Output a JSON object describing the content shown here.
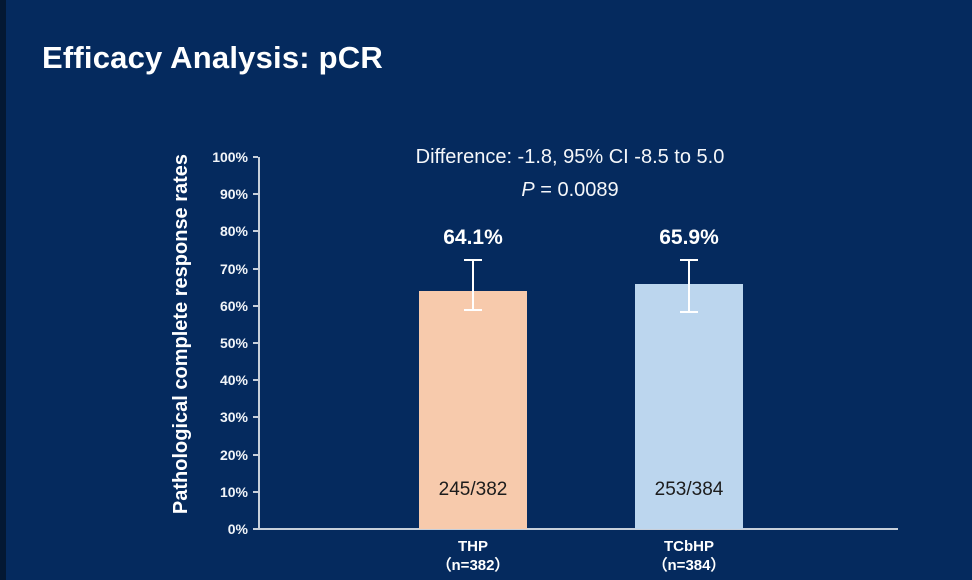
{
  "slide": {
    "title": "Efficacy Analysis: pCR"
  },
  "chart_data": {
    "type": "bar",
    "title": "",
    "xlabel": "",
    "ylabel": "Pathological complete response rates",
    "ylim": [
      0,
      100
    ],
    "grid": false,
    "legend": "none",
    "y_ticks": [
      "0%",
      "10%",
      "20%",
      "30%",
      "40%",
      "50%",
      "60%",
      "70%",
      "80%",
      "90%",
      "100%"
    ],
    "categories": [
      "THP",
      "TCbHP"
    ],
    "values": [
      64.1,
      65.9
    ],
    "annotation": {
      "difference_line": "Difference: -1.8, 95% CI -8.5 to 5.0",
      "p_prefix": "P",
      "p_rest": " = 0.0089"
    },
    "bars": [
      {
        "category_line1": "THP",
        "category_line2": "（n=382）",
        "value": 64.1,
        "value_label": "64.1%",
        "fraction_label": "245/382",
        "ci_low": 59.0,
        "ci_high": 72.2,
        "color": "#F7CAAC"
      },
      {
        "category_line1": "TCbHP",
        "category_line2": "（n=384）",
        "value": 65.9,
        "value_label": "65.9%",
        "fraction_label": "253/384",
        "ci_low": 58.3,
        "ci_high": 72.3,
        "color": "#BCD6EE"
      }
    ]
  },
  "colors": {
    "background": "#052A5E",
    "axis": "#C7CFDA",
    "text": "#FFFFFF",
    "fraction_text": "#1C1C1C",
    "error_bar": "#FFFFFF"
  }
}
